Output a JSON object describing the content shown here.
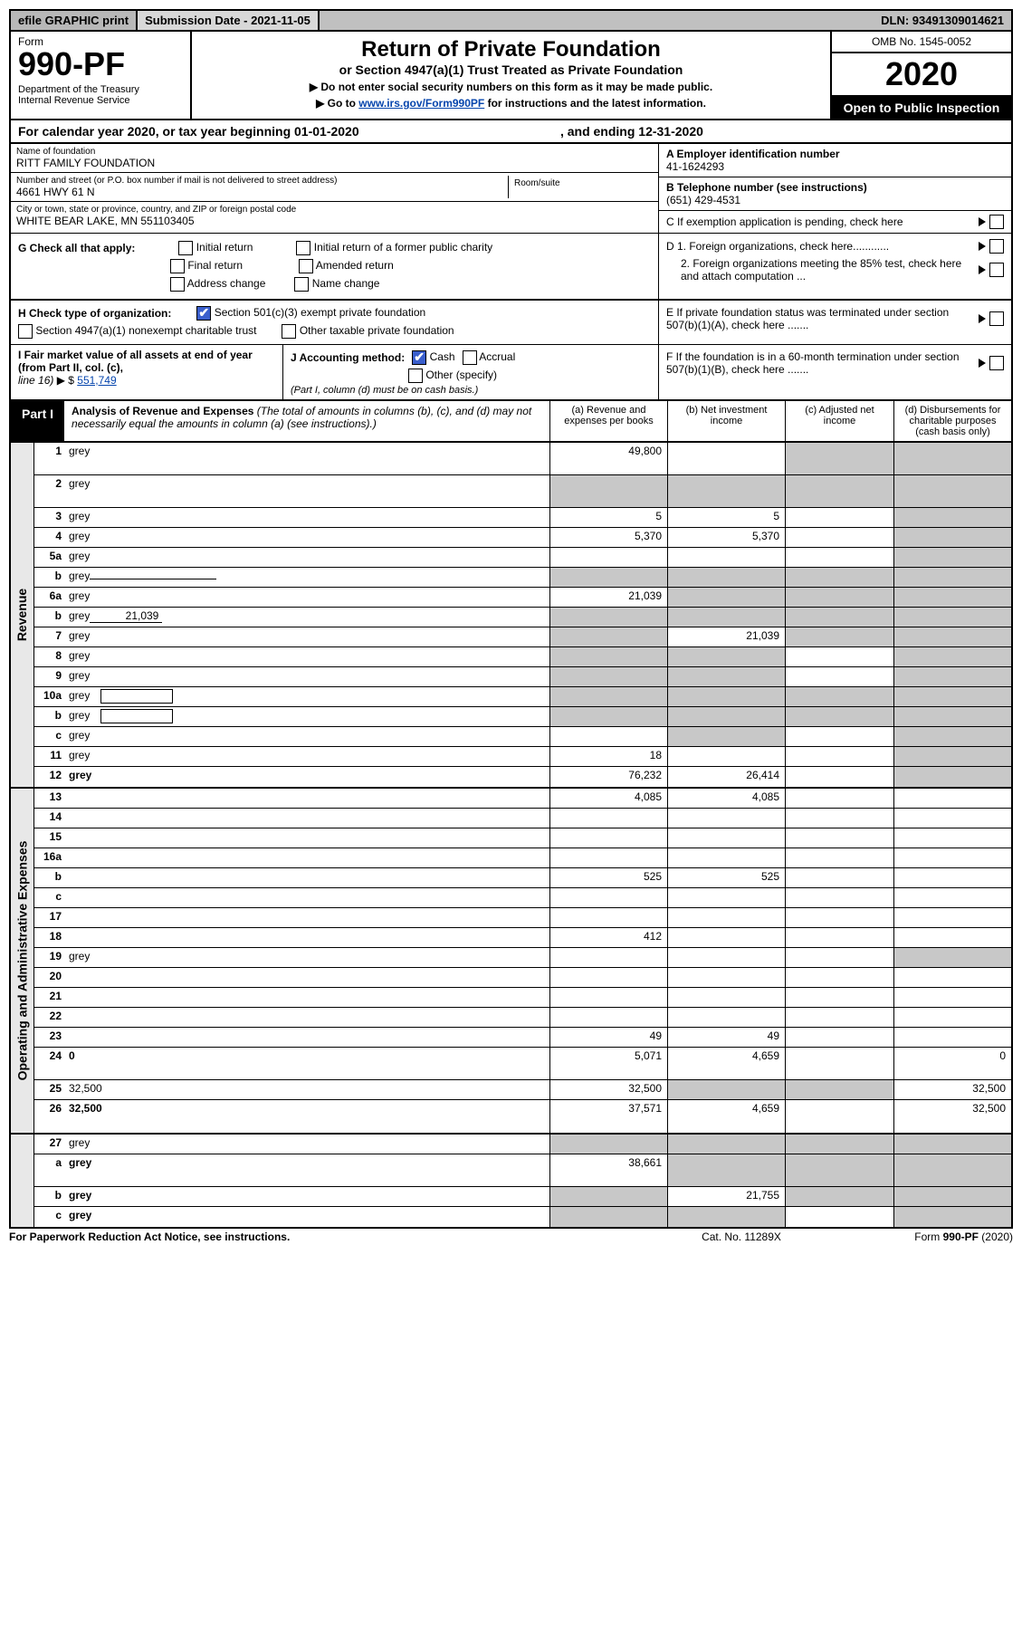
{
  "colors": {
    "header_grey": "#c0c0c0",
    "border": "#000000",
    "link": "#0645ad",
    "cell_grey": "#c8c8c8",
    "side_grey": "#e8e8e8",
    "checkbox_blue": "#3a5fcd"
  },
  "top_bar": {
    "efile": "efile GRAPHIC print",
    "submission": "Submission Date - 2021-11-05",
    "dln": "DLN: 93491309014621"
  },
  "header": {
    "form_label": "Form",
    "form_num": "990-PF",
    "dept": "Department of the Treasury\nInternal Revenue Service",
    "title": "Return of Private Foundation",
    "subtitle": "or Section 4947(a)(1) Trust Treated as Private Foundation",
    "note1": "▶ Do not enter social security numbers on this form as it may be made public.",
    "note2_pre": "▶ Go to ",
    "note2_link": "www.irs.gov/Form990PF",
    "note2_post": " for instructions and the latest information.",
    "omb": "OMB No. 1545-0052",
    "year": "2020",
    "inspect": "Open to Public Inspection"
  },
  "cal_year": {
    "beg_text": "For calendar year 2020, or tax year beginning 01-01-2020",
    "end_text": ", and ending 12-31-2020"
  },
  "foundation": {
    "name_lbl": "Name of foundation",
    "name": "RITT FAMILY FOUNDATION",
    "addr_lbl": "Number and street (or P.O. box number if mail is not delivered to street address)",
    "addr": "4661 HWY 61 N",
    "room_lbl": "Room/suite",
    "city_lbl": "City or town, state or province, country, and ZIP or foreign postal code",
    "city": "WHITE BEAR LAKE, MN  551103405"
  },
  "right_info": {
    "A_lbl": "A Employer identification number",
    "A_val": "41-1624293",
    "B_lbl": "B Telephone number (see instructions)",
    "B_val": "(651) 429-4531",
    "C_text": "C  If exemption application is pending, check here",
    "D1": "D 1. Foreign organizations, check here............",
    "D2": "2. Foreign organizations meeting the 85% test, check here and attach computation ...",
    "E": "E   If private foundation status was terminated under section 507(b)(1)(A), check here .......",
    "F": "F   If the foundation is in a 60-month termination under section 507(b)(1)(B), check here .......",
    "checkbox_state": false
  },
  "G": {
    "label": "G Check all that apply:",
    "opts": [
      "Initial return",
      "Final return",
      "Address change",
      "Initial return of a former public charity",
      "Amended return",
      "Name change"
    ]
  },
  "H": {
    "label": "H Check type of organization:",
    "opt1": "Section 501(c)(3) exempt private foundation",
    "opt1_checked": true,
    "opt2": "Section 4947(a)(1) nonexempt charitable trust",
    "opt3": "Other taxable private foundation"
  },
  "I": {
    "text1": "I Fair market value of all assets at end of year (from Part II, col. (c),",
    "text2": "line 16) ▶ $",
    "val": "551,749"
  },
  "J": {
    "label": "J Accounting method:",
    "cash": "Cash",
    "cash_checked": true,
    "accrual": "Accrual",
    "other": "Other (specify)",
    "note": "(Part I, column (d) must be on cash basis.)"
  },
  "part1": {
    "label": "Part I",
    "title": "Analysis of Revenue and Expenses",
    "title_note": " (The total of amounts in columns (b), (c), and (d) may not necessarily equal the amounts in column (a) (see instructions).)",
    "col_a": "(a)   Revenue and expenses per books",
    "col_b": "(b)   Net investment income",
    "col_c": "(c)   Adjusted net income",
    "col_d": "(d)   Disbursements for charitable purposes (cash basis only)"
  },
  "side_labels": {
    "revenue": "Revenue",
    "expenses": "Operating and Administrative Expenses"
  },
  "rows": [
    {
      "n": "1",
      "d": "grey",
      "a": "49,800",
      "b": "",
      "c": "grey",
      "tall": true
    },
    {
      "n": "2",
      "d": "grey",
      "a": "grey",
      "b": "grey",
      "c": "grey",
      "tall": true,
      "not_bold": true
    },
    {
      "n": "3",
      "d": "grey",
      "a": "5",
      "b": "5",
      "c": ""
    },
    {
      "n": "4",
      "d": "grey",
      "a": "5,370",
      "b": "5,370",
      "c": ""
    },
    {
      "n": "5a",
      "d": "grey",
      "a": "",
      "b": "",
      "c": ""
    },
    {
      "n": "b",
      "d": "grey",
      "a": "grey",
      "b": "grey",
      "c": "grey",
      "has_underline": true
    },
    {
      "n": "6a",
      "d": "grey",
      "a": "21,039",
      "b": "grey",
      "c": "grey"
    },
    {
      "n": "b",
      "d": "grey",
      "a": "grey",
      "b": "grey",
      "c": "grey",
      "inline_val": "21,039"
    },
    {
      "n": "7",
      "d": "grey",
      "a": "grey",
      "b": "21,039",
      "c": "grey"
    },
    {
      "n": "8",
      "d": "grey",
      "a": "grey",
      "b": "grey",
      "c": ""
    },
    {
      "n": "9",
      "d": "grey",
      "a": "grey",
      "b": "grey",
      "c": ""
    },
    {
      "n": "10a",
      "d": "grey",
      "a": "grey",
      "b": "grey",
      "c": "grey",
      "has_underline_box": true
    },
    {
      "n": "b",
      "d": "grey",
      "a": "grey",
      "b": "grey",
      "c": "grey",
      "has_underline_box": true
    },
    {
      "n": "c",
      "d": "grey",
      "a": "",
      "b": "grey",
      "c": ""
    },
    {
      "n": "11",
      "d": "grey",
      "a": "18",
      "b": "",
      "c": ""
    },
    {
      "n": "12",
      "d": "grey",
      "a": "76,232",
      "b": "26,414",
      "c": "",
      "bold": true
    }
  ],
  "exp_rows": [
    {
      "n": "13",
      "d": "",
      "a": "4,085",
      "b": "4,085",
      "c": ""
    },
    {
      "n": "14",
      "d": "",
      "a": "",
      "b": "",
      "c": ""
    },
    {
      "n": "15",
      "d": "",
      "a": "",
      "b": "",
      "c": ""
    },
    {
      "n": "16a",
      "d": "",
      "a": "",
      "b": "",
      "c": ""
    },
    {
      "n": "b",
      "d": "",
      "a": "525",
      "b": "525",
      "c": ""
    },
    {
      "n": "c",
      "d": "",
      "a": "",
      "b": "",
      "c": ""
    },
    {
      "n": "17",
      "d": "",
      "a": "",
      "b": "",
      "c": ""
    },
    {
      "n": "18",
      "d": "",
      "a": "412",
      "b": "",
      "c": ""
    },
    {
      "n": "19",
      "d": "grey",
      "a": "",
      "b": "",
      "c": ""
    },
    {
      "n": "20",
      "d": "",
      "a": "",
      "b": "",
      "c": ""
    },
    {
      "n": "21",
      "d": "",
      "a": "",
      "b": "",
      "c": ""
    },
    {
      "n": "22",
      "d": "",
      "a": "",
      "b": "",
      "c": ""
    },
    {
      "n": "23",
      "d": "",
      "a": "49",
      "b": "49",
      "c": ""
    },
    {
      "n": "24",
      "d": "0",
      "a": "5,071",
      "b": "4,659",
      "c": "",
      "bold": true,
      "tall": true
    },
    {
      "n": "25",
      "d": "32,500",
      "a": "32,500",
      "b": "grey",
      "c": "grey"
    },
    {
      "n": "26",
      "d": "32,500",
      "a": "37,571",
      "b": "4,659",
      "c": "",
      "bold": true,
      "tall": true
    }
  ],
  "line27": [
    {
      "n": "27",
      "d": "grey",
      "a": "grey",
      "b": "grey",
      "c": "grey"
    },
    {
      "n": "a",
      "d": "grey",
      "a": "38,661",
      "b": "grey",
      "c": "grey",
      "bold": true,
      "tall": true
    },
    {
      "n": "b",
      "d": "grey",
      "a": "grey",
      "b": "21,755",
      "c": "grey",
      "bold": true
    },
    {
      "n": "c",
      "d": "grey",
      "a": "grey",
      "b": "grey",
      "c": "",
      "bold": true
    }
  ],
  "footer": {
    "left": "For Paperwork Reduction Act Notice, see instructions.",
    "mid": "Cat. No. 11289X",
    "right": "Form 990-PF (2020)"
  }
}
